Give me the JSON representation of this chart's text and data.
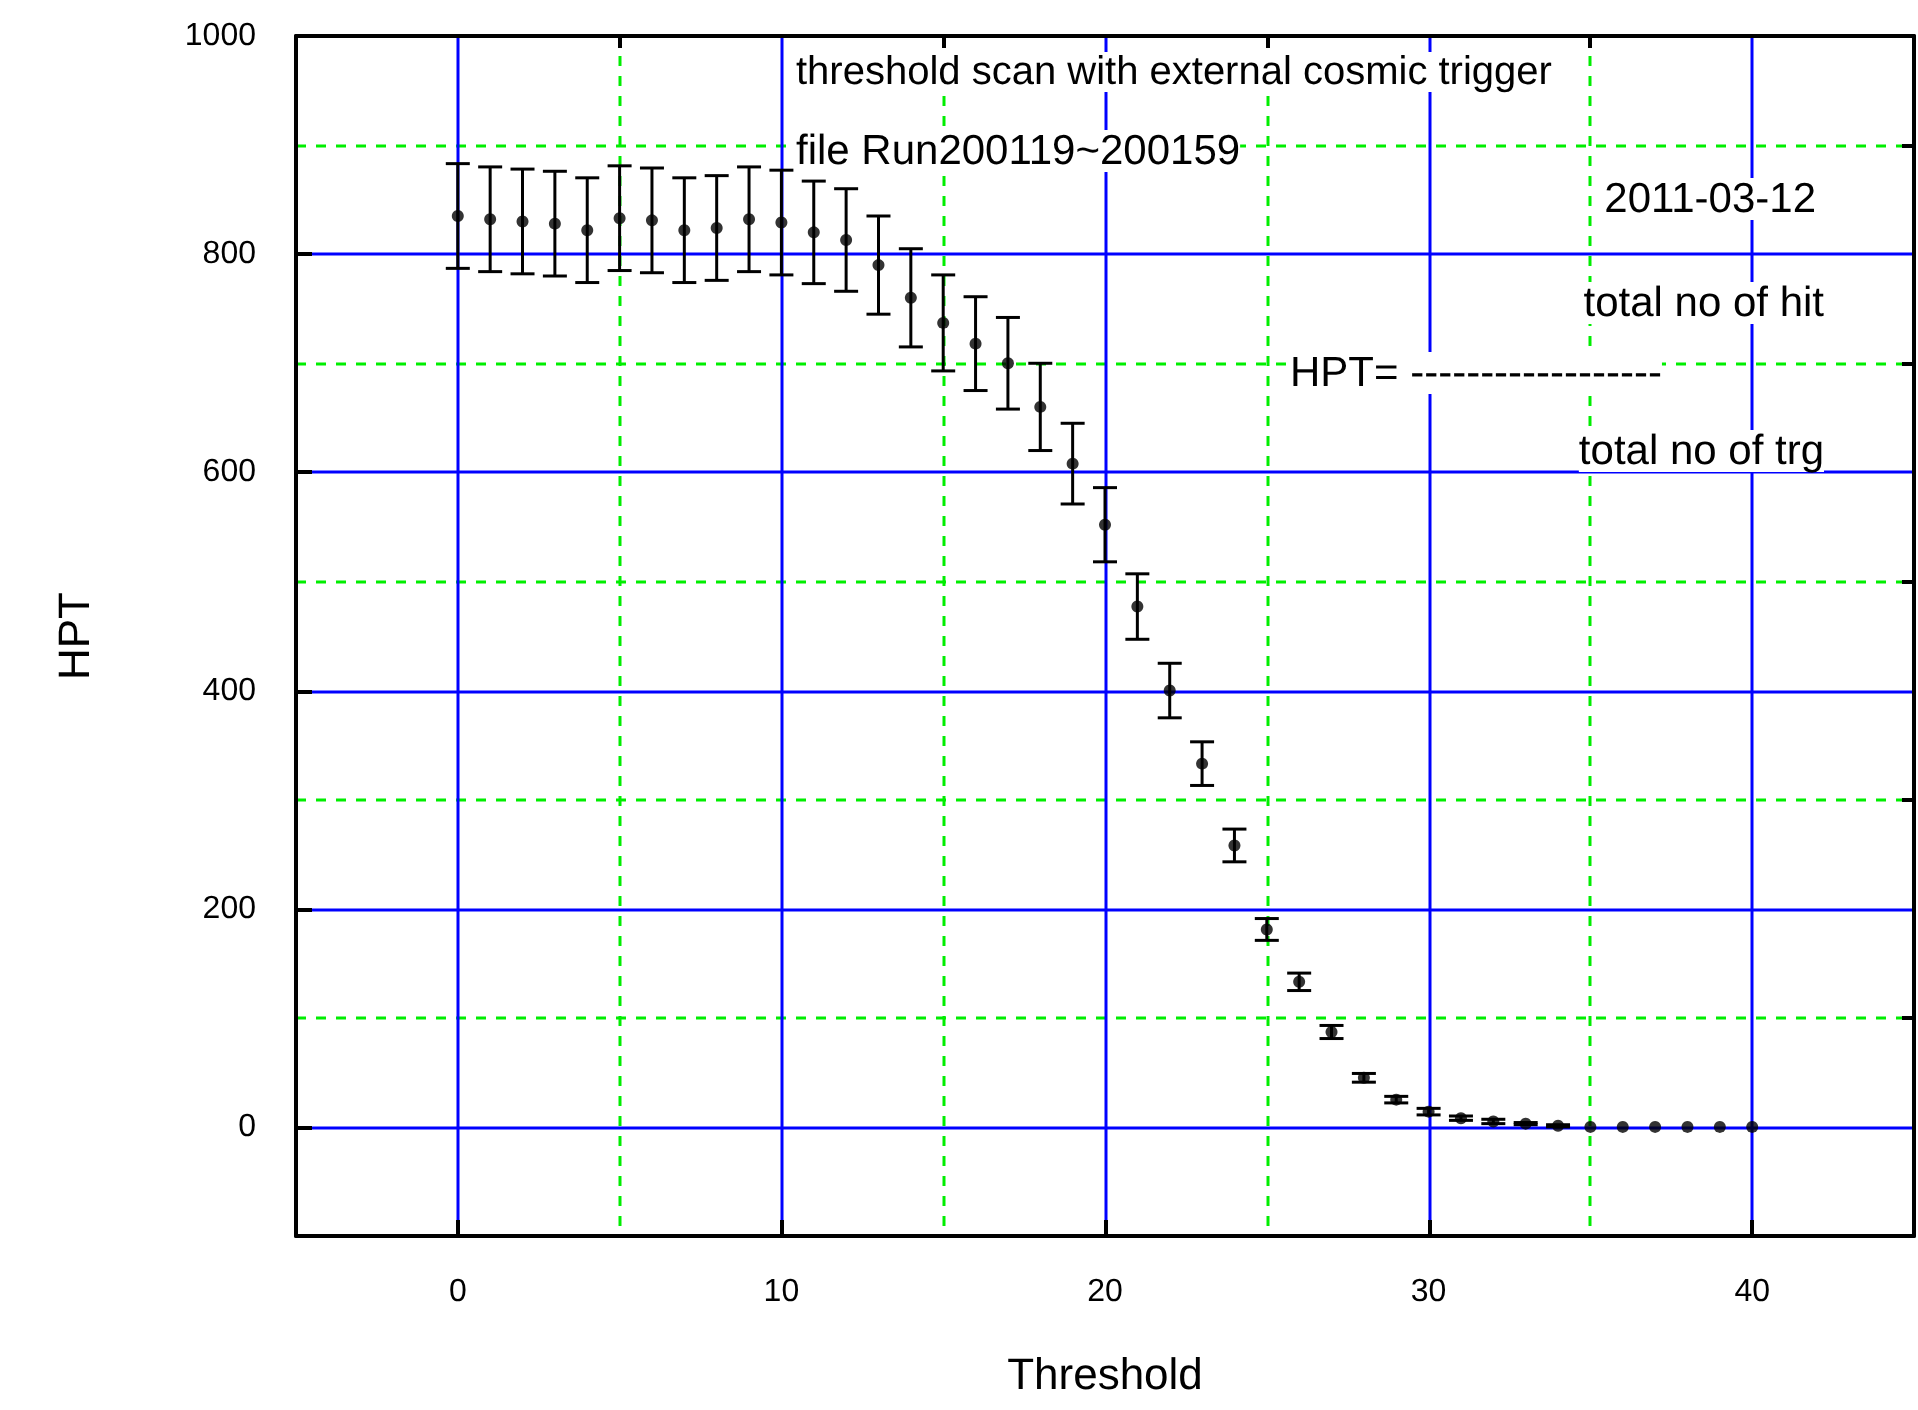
{
  "chart_data": {
    "type": "scatter",
    "xlabel": "Threshold",
    "ylabel": "HPT",
    "annotations": [
      "threshold scan with external cosmic trigger",
      "file Run200119~200159",
      "2011-03-12",
      "total no of hit",
      "HPT= ------------------",
      "total no of trg"
    ],
    "x": [
      0,
      1,
      2,
      3,
      4,
      5,
      6,
      7,
      8,
      9,
      10,
      11,
      12,
      13,
      14,
      15,
      16,
      17,
      18,
      19,
      20,
      21,
      22,
      23,
      24,
      25,
      26,
      27,
      28,
      29,
      30,
      31,
      32,
      33,
      34,
      35,
      36,
      37,
      38,
      39,
      40
    ],
    "series": [
      {
        "color": "#000000",
        "values": [
          835,
          832,
          830,
          828,
          822,
          833,
          831,
          822,
          824,
          832,
          829,
          820,
          813,
          790,
          760,
          737,
          718,
          700,
          660,
          608,
          552,
          477,
          400,
          333,
          258,
          181,
          133,
          87,
          45,
          25,
          14,
          8,
          5,
          3,
          1,
          0,
          0,
          0,
          0,
          0,
          0
        ],
        "errors": [
          48,
          48,
          48,
          48,
          48,
          48,
          48,
          48,
          48,
          48,
          48,
          47,
          47,
          45,
          45,
          44,
          43,
          42,
          40,
          37,
          34,
          30,
          25,
          20,
          15,
          10,
          8,
          6,
          4,
          3,
          3,
          2,
          2,
          1,
          1,
          null,
          null,
          null,
          null,
          null,
          null
        ]
      }
    ],
    "xlim": [
      -5,
      45
    ],
    "xticks": [
      0,
      {
        "value": 5,
        "label": null
      },
      10,
      {
        "value": 15,
        "label": null
      },
      20,
      {
        "value": 25,
        "label": null
      },
      30,
      {
        "value": 35,
        "label": null
      },
      40
    ],
    "ylim": [
      -100,
      1000
    ],
    "yticks": [
      0,
      {
        "value": 100,
        "label": null
      },
      200,
      {
        "value": 300,
        "label": null
      },
      400,
      {
        "value": 500,
        "label": null
      },
      600,
      {
        "value": 700,
        "label": null
      },
      800,
      {
        "value": 900,
        "label": null
      },
      1000
    ],
    "grid": true,
    "marker": "circle"
  }
}
